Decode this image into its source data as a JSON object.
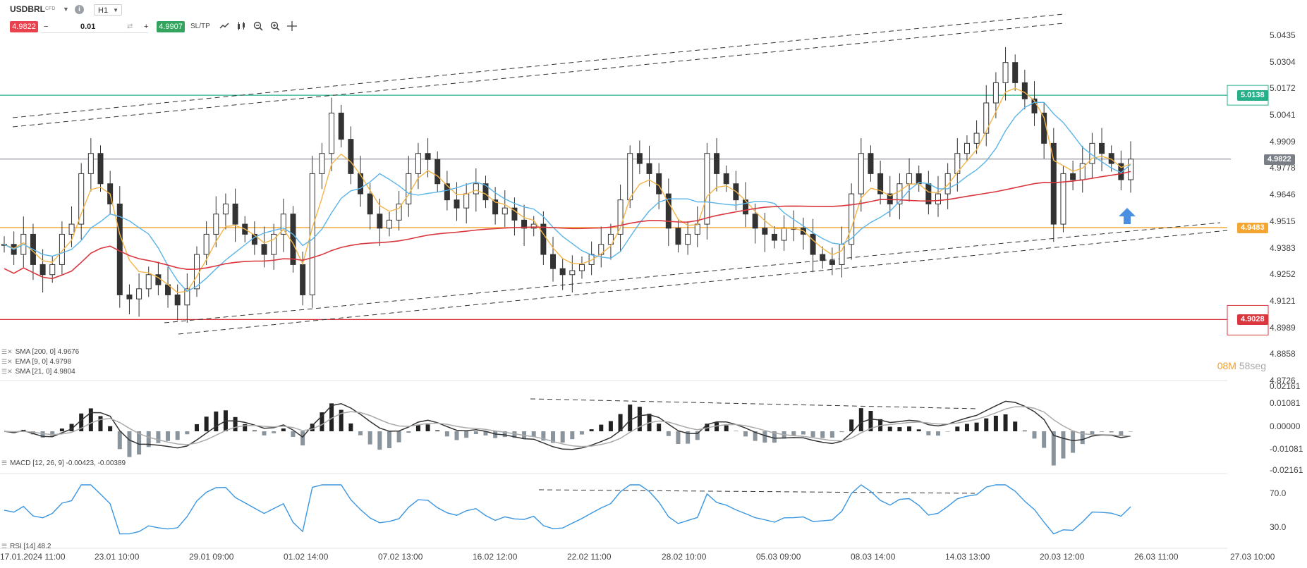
{
  "toolbar": {
    "symbol": "USDBRL",
    "instrument_type": "CFD",
    "timeframe": "H1",
    "sell_price": "4.9822",
    "quantity": "0.01",
    "buy_price": "4.9907",
    "sltp_label": "SL/TP",
    "icons": [
      "dropdown-caret-icon",
      "info-icon",
      "refresh-icon",
      "line-chart-icon",
      "candle-chart-icon",
      "zoom-out-icon",
      "zoom-in-icon",
      "crosshair-icon"
    ]
  },
  "price_axis": {
    "ticks": [
      "5.0435",
      "5.0304",
      "5.0172",
      "5.0041",
      "4.9909",
      "4.9778",
      "4.9646",
      "4.9515",
      "4.9383",
      "4.9252",
      "4.9121",
      "4.8989",
      "4.8858",
      "4.8726"
    ],
    "current_price": "4.9822",
    "resistance_tag": "5.0138",
    "support_mid_tag": "4.9483",
    "support_low_tag": "4.9028"
  },
  "macd_axis": {
    "ticks": [
      "0.02161",
      "0.01081",
      "0.00000",
      "-0.01081",
      "-0.02161"
    ]
  },
  "rsi_axis": {
    "ticks": [
      "70.0",
      "30.0"
    ]
  },
  "time_axis": {
    "labels": [
      "17.01.2024 11:00",
      "23.01 10:00",
      "29.01 09:00",
      "01.02 14:00",
      "07.02 13:00",
      "16.02 12:00",
      "22.02 11:00",
      "28.02 10:00",
      "05.03 09:00",
      "08.03 14:00",
      "14.03 13:00",
      "20.03 12:00",
      "26.03 11:00",
      "27.03 10:00"
    ]
  },
  "timer": {
    "minutes": "08M",
    "seconds": "58seg"
  },
  "indicators": {
    "sma200": "SMA [200, 0] 4.9676",
    "ema9": "EMA [9, 0] 4.9798",
    "sma21": "SMA [21, 0] 4.9804",
    "macd": "MACD [12, 26, 9] -0.00423, -0.00389",
    "rsi": "RSI [14] 48.2"
  },
  "colors": {
    "resistance": "#26b08a",
    "support_mid": "#f3a632",
    "support_low": "#d9363e",
    "sma200": "#d9363e",
    "ema9": "#f3b54a",
    "sma21": "#5ab4e8",
    "rsi": "#3a96e0",
    "up_arrow": "#4a8fe0"
  },
  "chart_data": {
    "type": "candlestick",
    "price_range": [
      4.8726,
      5.0435
    ],
    "horizontal_levels": [
      5.0138,
      4.9483,
      4.9028
    ],
    "current_price": 4.9822,
    "close_series": [
      4.94,
      4.935,
      4.945,
      4.93,
      4.925,
      4.93,
      4.945,
      4.95,
      4.975,
      4.985,
      4.97,
      4.96,
      4.915,
      4.913,
      4.918,
      4.925,
      4.92,
      4.915,
      4.91,
      4.918,
      4.935,
      4.945,
      4.955,
      4.96,
      4.95,
      4.945,
      4.94,
      4.935,
      4.945,
      4.955,
      4.93,
      4.915,
      4.975,
      4.985,
      5.005,
      4.992,
      4.975,
      4.965,
      4.955,
      4.948,
      4.952,
      4.96,
      4.975,
      4.985,
      4.982,
      4.97,
      4.962,
      4.958,
      4.965,
      4.97,
      4.962,
      4.955,
      4.958,
      4.952,
      4.948,
      4.95,
      4.935,
      4.928,
      4.925,
      4.927,
      4.93,
      4.935,
      4.94,
      4.945,
      4.962,
      4.985,
      4.98,
      4.975,
      4.965,
      4.948,
      4.94,
      4.945,
      4.95,
      4.985,
      4.975,
      4.97,
      4.962,
      4.955,
      4.948,
      4.945,
      4.942,
      4.948,
      4.948,
      4.945,
      4.935,
      4.932,
      4.93,
      4.94,
      4.965,
      4.985,
      4.975,
      4.965,
      4.96,
      4.97,
      4.975,
      4.97,
      4.96,
      4.965,
      4.975,
      4.985,
      4.99,
      4.995,
      5.01,
      5.02,
      5.03,
      5.02,
      5.012,
      5.005,
      4.99,
      4.95,
      4.975,
      4.972,
      4.98,
      4.99,
      4.985,
      4.98,
      4.972,
      4.9822
    ]
  }
}
